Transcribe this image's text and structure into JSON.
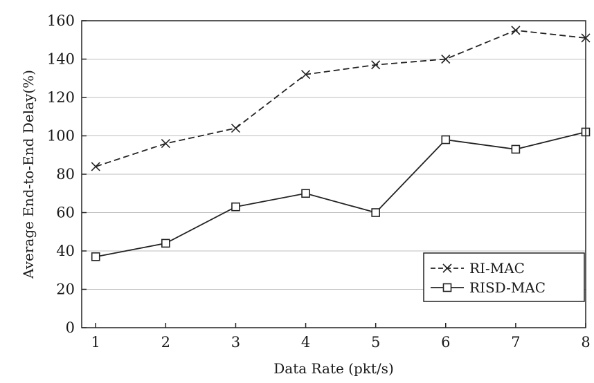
{
  "chart_data": {
    "type": "line",
    "x": [
      1,
      2,
      3,
      4,
      5,
      6,
      7,
      8
    ],
    "series": [
      {
        "name": "RI-MAC",
        "values": [
          84,
          96,
          104,
          132,
          137,
          140,
          155,
          151
        ],
        "marker": "x",
        "line_style": "dashed",
        "color": "#222222"
      },
      {
        "name": "RISD-MAC",
        "values": [
          37,
          44,
          63,
          70,
          60,
          98,
          93,
          102
        ],
        "marker": "square",
        "line_style": "solid",
        "color": "#222222"
      }
    ],
    "xlabel": "Data Rate (pkt/s)",
    "ylabel": "Average End-to-End Delay(%)",
    "xlim": [
      0.8,
      8.0
    ],
    "ylim": [
      0,
      160
    ],
    "xticks": [
      "1",
      "2",
      "3",
      "4",
      "5",
      "6",
      "7",
      "8"
    ],
    "yticks": [
      "0",
      "20",
      "40",
      "60",
      "80",
      "100",
      "120",
      "140",
      "160"
    ],
    "grid": "horizontal",
    "legend_position": "bottom-right"
  }
}
